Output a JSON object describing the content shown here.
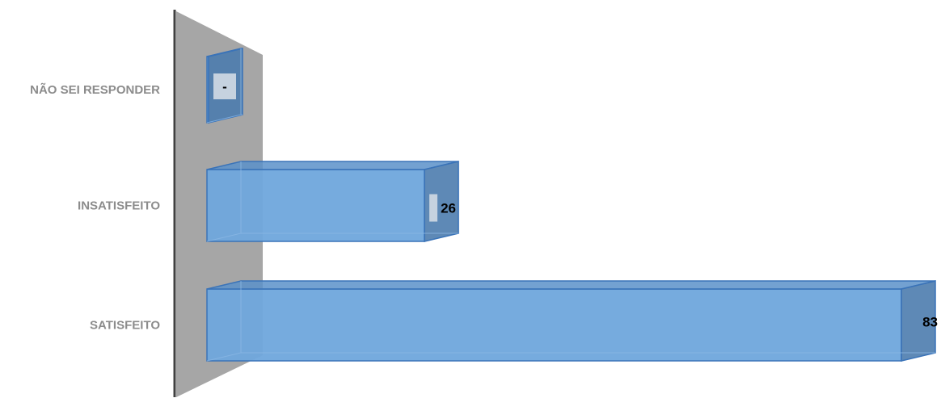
{
  "chart_data": {
    "type": "bar",
    "orientation": "horizontal",
    "style": "3d",
    "categories": [
      "NÃO SEI RESPONDER",
      "INSATISFEITO",
      "SATISFEITO"
    ],
    "values": [
      0,
      26,
      83
    ],
    "value_labels": [
      "-",
      "26",
      "83"
    ],
    "xlim": [
      0,
      83
    ],
    "grid": false,
    "legend": "none",
    "colors": {
      "bar_front": "#6fa6dc",
      "bar_top": "#5b91c9",
      "bar_side": "#4c7cae",
      "bar_edge": "#3a73b8",
      "wall": "#a6a6a6",
      "axis": "#404040"
    }
  }
}
